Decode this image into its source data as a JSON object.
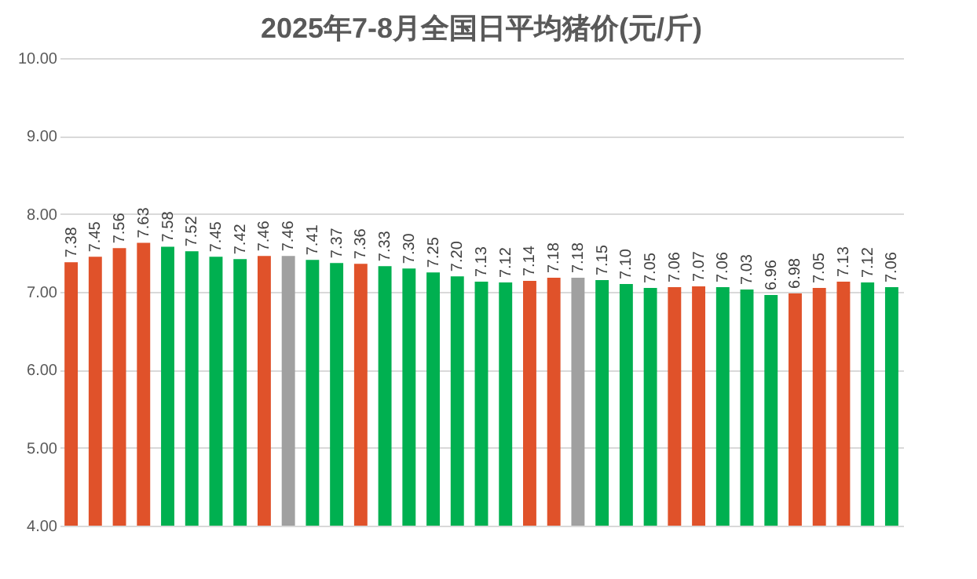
{
  "chart_data": {
    "type": "bar",
    "title": "2025年7-8月全国日平均猪价(元/斤)",
    "categories": [
      null,
      null,
      null,
      null,
      null,
      null,
      null,
      null,
      null,
      null,
      null,
      null,
      null,
      null,
      null,
      null,
      null,
      null,
      null,
      null,
      null,
      null,
      null,
      null,
      null,
      null,
      null,
      null,
      null,
      null,
      null,
      null,
      null,
      null,
      null
    ],
    "values": [
      7.38,
      7.45,
      7.56,
      7.63,
      7.58,
      7.52,
      7.45,
      7.42,
      7.46,
      7.46,
      7.41,
      7.37,
      7.36,
      7.33,
      7.3,
      7.25,
      7.2,
      7.13,
      7.12,
      7.14,
      7.18,
      7.18,
      7.15,
      7.1,
      7.05,
      7.06,
      7.07,
      7.06,
      7.03,
      6.96,
      6.98,
      7.05,
      7.13,
      7.12,
      7.06
    ],
    "colors": [
      "#e0522a",
      "#e0522a",
      "#e0522a",
      "#e0522a",
      "#00b050",
      "#00b050",
      "#00b050",
      "#00b050",
      "#e0522a",
      "#a0a0a0",
      "#00b050",
      "#00b050",
      "#e0522a",
      "#00b050",
      "#00b050",
      "#00b050",
      "#00b050",
      "#00b050",
      "#00b050",
      "#e0522a",
      "#e0522a",
      "#a0a0a0",
      "#00b050",
      "#00b050",
      "#00b050",
      "#e0522a",
      "#e0522a",
      "#00b050",
      "#00b050",
      "#00b050",
      "#e0522a",
      "#e0522a",
      "#e0522a",
      "#00b050",
      "#00b050"
    ],
    "ylim": [
      4,
      10
    ],
    "yticks": [
      {
        "value": 4,
        "label": "4.00"
      },
      {
        "value": 5,
        "label": "5.00"
      },
      {
        "value": 6,
        "label": "6.00"
      },
      {
        "value": 7,
        "label": "7.00"
      },
      {
        "value": 8,
        "label": "8.00"
      },
      {
        "value": 9,
        "label": "9.00"
      },
      {
        "value": 10,
        "label": "10.00"
      }
    ],
    "value_labels": [
      "7.38",
      "7.45",
      "7.56",
      "7.63",
      "7.58",
      "7.52",
      "7.45",
      "7.42",
      "7.46",
      "7.46",
      "7.41",
      "7.37",
      "7.36",
      "7.33",
      "7.30",
      "7.25",
      "7.20",
      "7.13",
      "7.12",
      "7.14",
      "7.18",
      "7.18",
      "7.15",
      "7.10",
      "7.05",
      "7.06",
      "7.07",
      "7.06",
      "7.03",
      "6.96",
      "6.98",
      "7.05",
      "7.13",
      "7.12",
      "7.06"
    ],
    "grid": "y",
    "tick_labels": "y"
  }
}
